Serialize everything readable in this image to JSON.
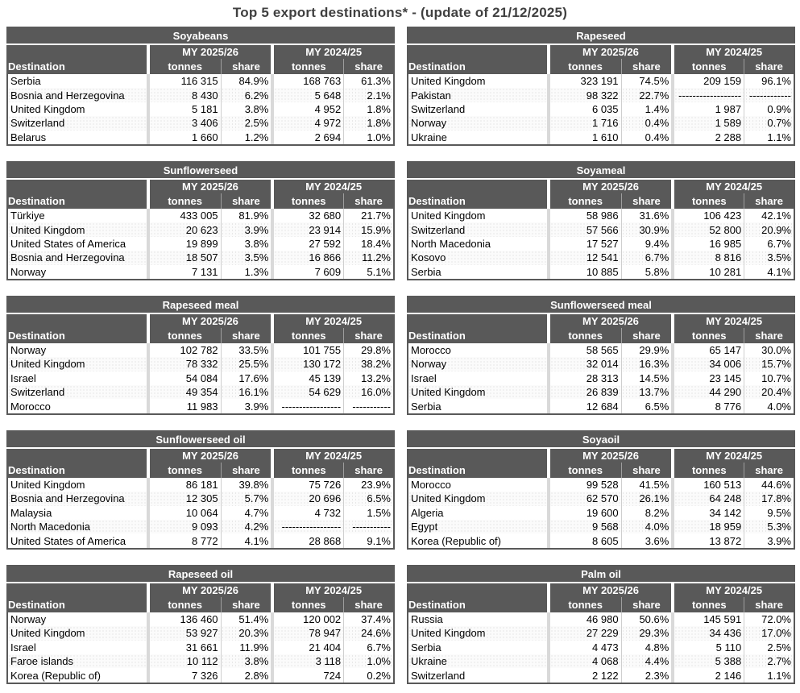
{
  "page_title": "Top 5 export destinations* - (update of 21/12/2025)",
  "columns": {
    "destination": "Destination",
    "my_current": "MY 2025/26",
    "my_previous": "MY 2024/25",
    "tonnes": "tonnes",
    "share": "share"
  },
  "colors": {
    "header_bg": "#595959",
    "header_text": "#ffffff",
    "title_text": "#404040",
    "alt_row": "#f2f2f2",
    "column_separator": "#d9d9d9",
    "table_border": "#595959"
  },
  "tables": [
    {
      "title": "Soyabeans",
      "rows": [
        [
          "Serbia",
          "116 315",
          "84.9%",
          "168 763",
          "61.3%"
        ],
        [
          "Bosnia and Herzegovina",
          "8 430",
          "6.2%",
          "5 648",
          "2.1%"
        ],
        [
          "United Kingdom",
          "5 181",
          "3.8%",
          "4 952",
          "1.8%"
        ],
        [
          "Switzerland",
          "3 406",
          "2.5%",
          "4 972",
          "1.8%"
        ],
        [
          "Belarus",
          "1 660",
          "1.2%",
          "2 694",
          "1.0%"
        ]
      ]
    },
    {
      "title": "Rapeseed",
      "rows": [
        [
          "United Kingdom",
          "323 191",
          "74.5%",
          "209 159",
          "96.1%"
        ],
        [
          "Pakistan",
          "98 322",
          "22.7%",
          "------------------",
          "------------"
        ],
        [
          "Switzerland",
          "6 035",
          "1.4%",
          "1 987",
          "0.9%"
        ],
        [
          "Norway",
          "1 716",
          "0.4%",
          "1 589",
          "0.7%"
        ],
        [
          "Ukraine",
          "1 610",
          "0.4%",
          "2 288",
          "1.1%"
        ]
      ]
    },
    {
      "title": "Sunflowerseed",
      "rows": [
        [
          "Türkiye",
          "433 005",
          "81.9%",
          "32 680",
          "21.7%"
        ],
        [
          "United Kingdom",
          "20 623",
          "3.9%",
          "23 914",
          "15.9%"
        ],
        [
          "United States of America",
          "19 899",
          "3.8%",
          "27 592",
          "18.4%"
        ],
        [
          "Bosnia and Herzegovina",
          "18 507",
          "3.5%",
          "16 866",
          "11.2%"
        ],
        [
          "Norway",
          "7 131",
          "1.3%",
          "7 609",
          "5.1%"
        ]
      ]
    },
    {
      "title": "Soyameal",
      "rows": [
        [
          "United Kingdom",
          "58 986",
          "31.6%",
          "106 423",
          "42.1%"
        ],
        [
          "Switzerland",
          "57 566",
          "30.9%",
          "52 800",
          "20.9%"
        ],
        [
          "North Macedonia",
          "17 527",
          "9.4%",
          "16 985",
          "6.7%"
        ],
        [
          "Kosovo",
          "12 541",
          "6.7%",
          "8 816",
          "3.5%"
        ],
        [
          "Serbia",
          "10 885",
          "5.8%",
          "10 281",
          "4.1%"
        ]
      ]
    },
    {
      "title": "Rapeseed meal",
      "rows": [
        [
          "Norway",
          "102 782",
          "33.5%",
          "101 755",
          "29.8%"
        ],
        [
          "United Kingdom",
          "78 332",
          "25.5%",
          "130 172",
          "38.2%"
        ],
        [
          "Israel",
          "54 084",
          "17.6%",
          "45 139",
          "13.2%"
        ],
        [
          "Switzerland",
          "49 354",
          "16.1%",
          "54 629",
          "16.0%"
        ],
        [
          "Morocco",
          "11 983",
          "3.9%",
          "-----------------",
          "-----------"
        ]
      ]
    },
    {
      "title": "Sunflowerseed meal",
      "rows": [
        [
          "Morocco",
          "58 565",
          "29.9%",
          "65 147",
          "30.0%"
        ],
        [
          "Norway",
          "32 014",
          "16.3%",
          "34 006",
          "15.7%"
        ],
        [
          "Israel",
          "28 313",
          "14.5%",
          "23 145",
          "10.7%"
        ],
        [
          "United Kingdom",
          "26 839",
          "13.7%",
          "44 290",
          "20.4%"
        ],
        [
          "Serbia",
          "12 684",
          "6.5%",
          "8 776",
          "4.0%"
        ]
      ]
    },
    {
      "title": "Sunflowerseed oil",
      "rows": [
        [
          "United Kingdom",
          "86 181",
          "39.8%",
          "75 726",
          "23.9%"
        ],
        [
          "Bosnia and Herzegovina",
          "12 305",
          "5.7%",
          "20 696",
          "6.5%"
        ],
        [
          "Malaysia",
          "10 064",
          "4.7%",
          "4 732",
          "1.5%"
        ],
        [
          "North Macedonia",
          "9 093",
          "4.2%",
          "-----------------",
          "-----------"
        ],
        [
          "United States of America",
          "8 772",
          "4.1%",
          "28 868",
          "9.1%"
        ]
      ]
    },
    {
      "title": "Soyaoil",
      "rows": [
        [
          "Morocco",
          "99 528",
          "41.5%",
          "160 513",
          "44.6%"
        ],
        [
          "United Kingdom",
          "62 570",
          "26.1%",
          "64 248",
          "17.8%"
        ],
        [
          "Algeria",
          "19 600",
          "8.2%",
          "34 142",
          "9.5%"
        ],
        [
          "Egypt",
          "9 568",
          "4.0%",
          "18 959",
          "5.3%"
        ],
        [
          "Korea (Republic of)",
          "8 605",
          "3.6%",
          "13 872",
          "3.9%"
        ]
      ]
    },
    {
      "title": "Rapeseed oil",
      "rows": [
        [
          "Norway",
          "136 460",
          "51.4%",
          "120 002",
          "37.4%"
        ],
        [
          "United Kingdom",
          "53 927",
          "20.3%",
          "78 947",
          "24.6%"
        ],
        [
          "Israel",
          "31 661",
          "11.9%",
          "21 404",
          "6.7%"
        ],
        [
          "Faroe islands",
          "10 112",
          "3.8%",
          "3 118",
          "1.0%"
        ],
        [
          "Korea (Republic of)",
          "7 326",
          "2.8%",
          "724",
          "0.2%"
        ]
      ]
    },
    {
      "title": "Palm oil",
      "rows": [
        [
          "Russia",
          "46 980",
          "50.6%",
          "145 591",
          "72.0%"
        ],
        [
          "United Kingdom",
          "27 229",
          "29.3%",
          "34 436",
          "17.0%"
        ],
        [
          "Serbia",
          "4 473",
          "4.8%",
          "5 110",
          "2.5%"
        ],
        [
          "Ukraine",
          "4 068",
          "4.4%",
          "5 388",
          "2.7%"
        ],
        [
          "Switzerland",
          "2 122",
          "2.3%",
          "2 146",
          "1.1%"
        ]
      ]
    }
  ]
}
